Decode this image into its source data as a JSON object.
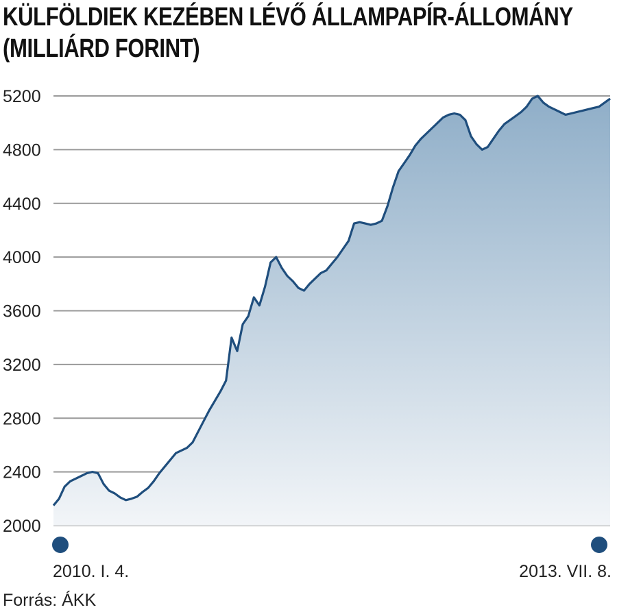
{
  "chart_data": {
    "type": "area",
    "title": "KÜLFÖLDIEK KEZÉBEN LÉVŐ ÁLLAMPAPÍR-ÁLLOMÁNY",
    "subtitle": "(MILLIÁRD FORINT)",
    "ylim": [
      2000,
      5200
    ],
    "yticks": [
      2000,
      2400,
      2800,
      3200,
      3600,
      4000,
      4400,
      4800,
      5200
    ],
    "xlim": [
      0,
      100
    ],
    "start_label": "2010. I. 4.",
    "end_label": "2013. VII. 8.",
    "source": "Forrás: ÁKK",
    "grid": true,
    "colors": {
      "line": "#1f4e7d",
      "fill_top": "#8faec8",
      "fill_bottom": "#f2f5f8",
      "grid": "#9a9a9a",
      "dot": "#1f4e7d"
    },
    "series": [
      {
        "x": [
          0,
          1,
          2,
          3,
          4,
          5,
          6,
          7,
          8,
          9,
          10,
          11,
          12,
          13,
          14,
          15,
          16,
          17,
          18,
          19,
          20,
          21,
          22,
          23,
          24,
          25,
          26,
          27,
          28,
          29,
          30,
          31,
          32,
          33,
          34,
          35,
          36,
          37,
          38,
          39,
          40,
          41,
          42,
          43,
          44,
          45,
          46,
          47,
          48,
          49,
          50,
          51,
          52,
          53,
          54,
          55,
          56,
          57,
          58,
          59,
          60,
          61,
          62,
          63,
          64,
          65,
          66,
          67,
          68,
          69,
          70,
          71,
          72,
          73,
          74,
          75,
          76,
          77,
          78,
          79,
          80,
          81,
          82,
          83,
          84,
          85,
          86,
          87,
          88,
          89,
          90,
          91,
          92,
          93,
          94,
          95,
          96,
          97,
          98,
          99,
          100
        ],
        "values": [
          2150,
          2200,
          2290,
          2330,
          2350,
          2370,
          2390,
          2400,
          2390,
          2310,
          2260,
          2240,
          2210,
          2190,
          2200,
          2215,
          2250,
          2280,
          2330,
          2390,
          2440,
          2490,
          2540,
          2560,
          2580,
          2620,
          2700,
          2780,
          2860,
          2930,
          3000,
          3080,
          3400,
          3300,
          3500,
          3560,
          3700,
          3640,
          3780,
          3960,
          4000,
          3920,
          3860,
          3820,
          3770,
          3750,
          3800,
          3840,
          3880,
          3900,
          3950,
          4000,
          4060,
          4120,
          4250,
          4260,
          4250,
          4240,
          4250,
          4270,
          4380,
          4520,
          4640,
          4700,
          4760,
          4830,
          4880,
          4920,
          4960,
          5000,
          5040,
          5060,
          5070,
          5060,
          5020,
          4900,
          4840,
          4800,
          4820,
          4880,
          4940,
          4990,
          5020,
          5050,
          5080,
          5120,
          5180,
          5200,
          5150,
          5120,
          5100,
          5080,
          5060,
          5070,
          5080,
          5090,
          5100,
          5110,
          5120,
          5150,
          5180
        ]
      }
    ]
  }
}
